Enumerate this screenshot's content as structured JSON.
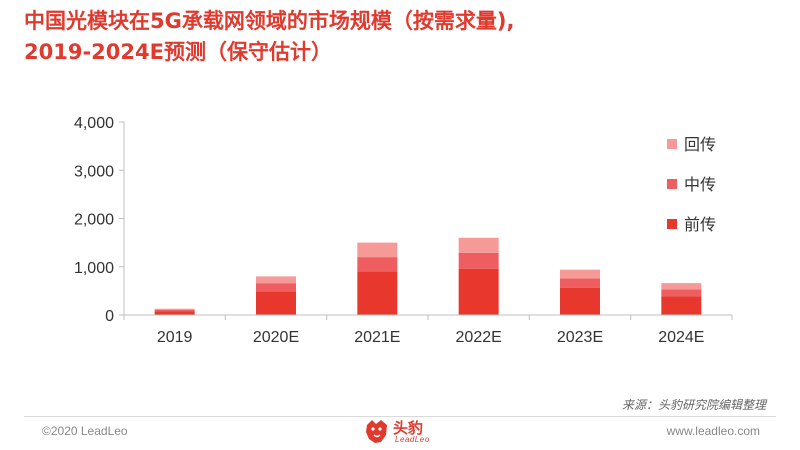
{
  "title": {
    "line1": "中国光模块在5G承载网领域的市场规模（按需求量),",
    "line2": "2019-2024E预测（保守估计）"
  },
  "chart_data": {
    "type": "bar",
    "stacked": true,
    "categories": [
      "2019",
      "2020E",
      "2021E",
      "2022E",
      "2023E",
      "2024E"
    ],
    "series": [
      {
        "name": "前传",
        "color": "#e8382e",
        "values": [
          80,
          490,
          900,
          960,
          560,
          390
        ]
      },
      {
        "name": "中传",
        "color": "#ee5e61",
        "values": [
          30,
          170,
          300,
          330,
          200,
          140
        ]
      },
      {
        "name": "回传",
        "color": "#f59a97",
        "values": [
          20,
          140,
          300,
          310,
          180,
          130
        ]
      }
    ],
    "yticks": [
      "0",
      "1,000",
      "2,000",
      "3,000",
      "4,000"
    ],
    "ylim": [
      0,
      4000
    ],
    "grid": false,
    "legend_position": "right",
    "legend_order": [
      "回传",
      "中传",
      "前传"
    ]
  },
  "source": "来源：头豹研究院编辑整理",
  "footer": {
    "copyright": "©2020 LeadLeo",
    "website": "www.leadleo.com",
    "logo_text": "头豹",
    "logo_sub": "LeadLeo"
  },
  "colors": {
    "accent": "#e03a2f",
    "axis": "#bfbfbf",
    "text": "#333333"
  }
}
